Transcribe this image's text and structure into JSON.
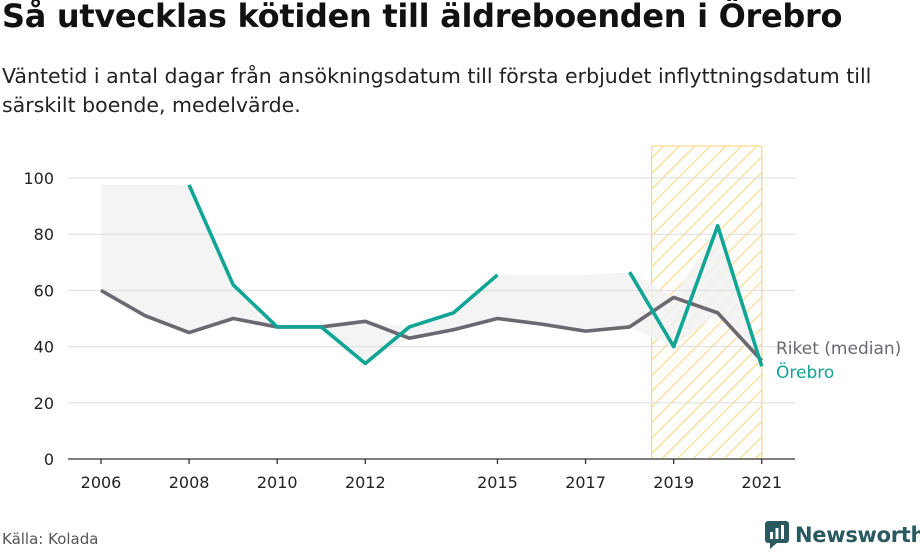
{
  "title": "Så utvecklas kötiden till äldreboenden i Örebro",
  "subtitle": "Väntetid i antal dagar från ansökningsdatum till första erbjudet inflyttningsdatum till särskilt boende, medelvärde.",
  "source": "Källa: Kolada",
  "brand": "Newsworthy",
  "colors": {
    "riket": "#6b6870",
    "orebro": "#10a595",
    "highlight": "#fbd785",
    "band": "#f2f2f2",
    "grid": "#dddddd"
  },
  "chart_data": {
    "type": "line",
    "x": [
      2006,
      2007,
      2008,
      2009,
      2010,
      2011,
      2012,
      2013,
      2014,
      2015,
      2016,
      2017,
      2018,
      2019,
      2020,
      2021
    ],
    "x_ticks": [
      2006,
      2008,
      2010,
      2012,
      2015,
      2017,
      2019,
      2021
    ],
    "ylim": [
      0,
      100
    ],
    "y_ticks": [
      0,
      20,
      40,
      60,
      80,
      100
    ],
    "grid": true,
    "highlight_range": [
      2018.5,
      2021
    ],
    "series": [
      {
        "name": "Riket (median)",
        "values": [
          60,
          51,
          45,
          50,
          47,
          47,
          49,
          43,
          46,
          50,
          48,
          45.5,
          47,
          57.5,
          52,
          35
        ]
      },
      {
        "name": "Örebro",
        "values": [
          null,
          null,
          97.5,
          62,
          47,
          47,
          34,
          47,
          52,
          65.5,
          null,
          null,
          66.5,
          40,
          83,
          33
        ]
      }
    ]
  }
}
